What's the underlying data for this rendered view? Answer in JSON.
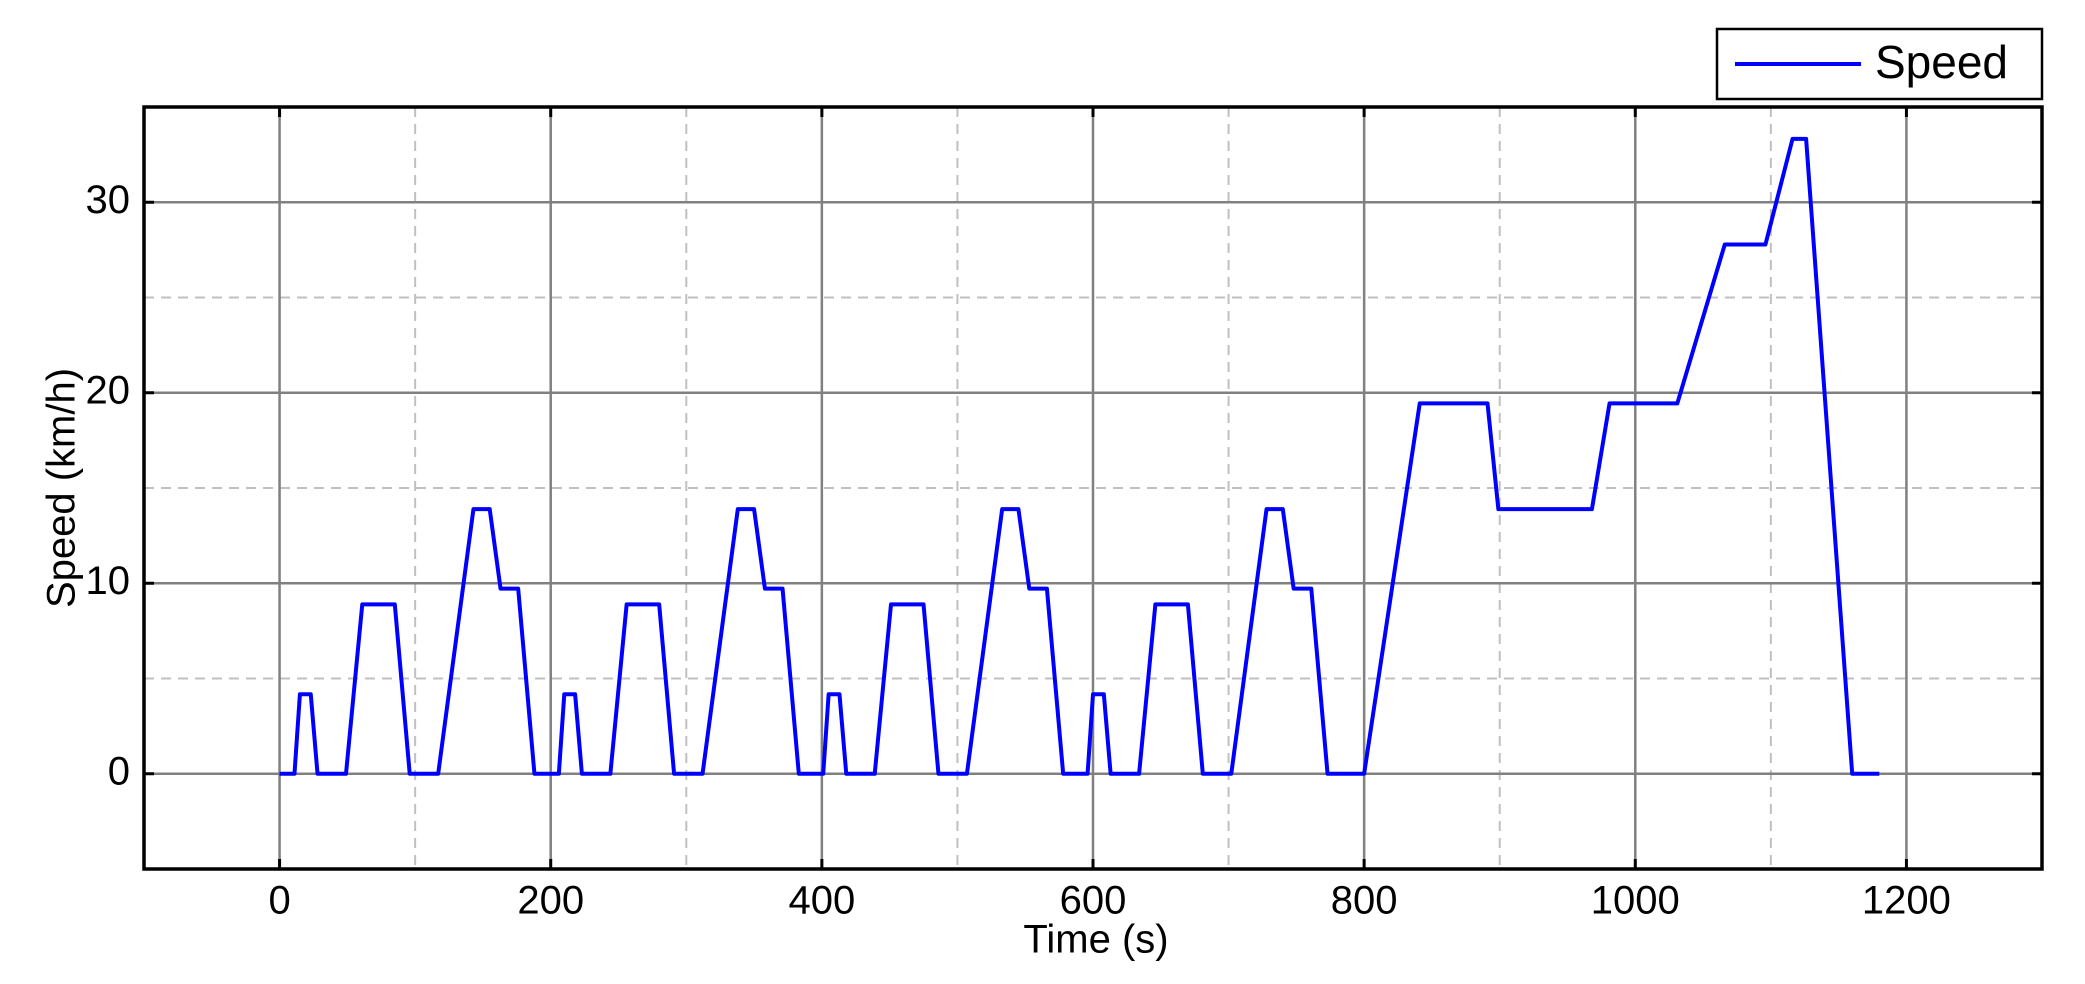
{
  "chart_data": {
    "type": "line",
    "x_label": "Time (s)",
    "y_label": "Speed (km/h)",
    "x": [
      0,
      11,
      15,
      23,
      28,
      49,
      61,
      85,
      96,
      117,
      143,
      155,
      163,
      176,
      188,
      195,
      206,
      210,
      218,
      223,
      244,
      256,
      280,
      291,
      312,
      338,
      350,
      358,
      371,
      383,
      390,
      401,
      405,
      413,
      418,
      439,
      451,
      475,
      486,
      507,
      533,
      545,
      553,
      566,
      578,
      585,
      596,
      600,
      608,
      613,
      634,
      646,
      670,
      681,
      702,
      728,
      740,
      748,
      761,
      773,
      780,
      800,
      841,
      891,
      899,
      968,
      981,
      1031,
      1066,
      1096,
      1116,
      1126,
      1160,
      1180
    ],
    "series": [
      {
        "name": "Speed",
        "color": "#0000ff",
        "values": [
          0,
          0,
          4.17,
          4.17,
          0,
          0,
          8.89,
          8.89,
          0,
          0,
          13.89,
          13.89,
          9.72,
          9.72,
          0,
          0,
          0,
          4.17,
          4.17,
          0,
          0,
          8.89,
          8.89,
          0,
          0,
          13.89,
          13.89,
          9.72,
          9.72,
          0,
          0,
          0,
          4.17,
          4.17,
          0,
          0,
          8.89,
          8.89,
          0,
          0,
          13.89,
          13.89,
          9.72,
          9.72,
          0,
          0,
          0,
          4.17,
          4.17,
          0,
          0,
          8.89,
          8.89,
          0,
          0,
          13.89,
          13.89,
          9.72,
          9.72,
          0,
          0,
          0,
          19.44,
          19.44,
          13.89,
          13.89,
          19.44,
          19.44,
          27.78,
          27.78,
          33.33,
          33.33,
          0,
          0
        ]
      }
    ],
    "xlim": [
      -100,
      1300
    ],
    "ylim": [
      -5,
      35
    ],
    "xticks": [
      0,
      200,
      400,
      600,
      800,
      1000,
      1200
    ],
    "yticks": [
      0,
      10,
      20,
      30
    ],
    "grid": true,
    "minor_grid": true,
    "legend": "upper right"
  }
}
